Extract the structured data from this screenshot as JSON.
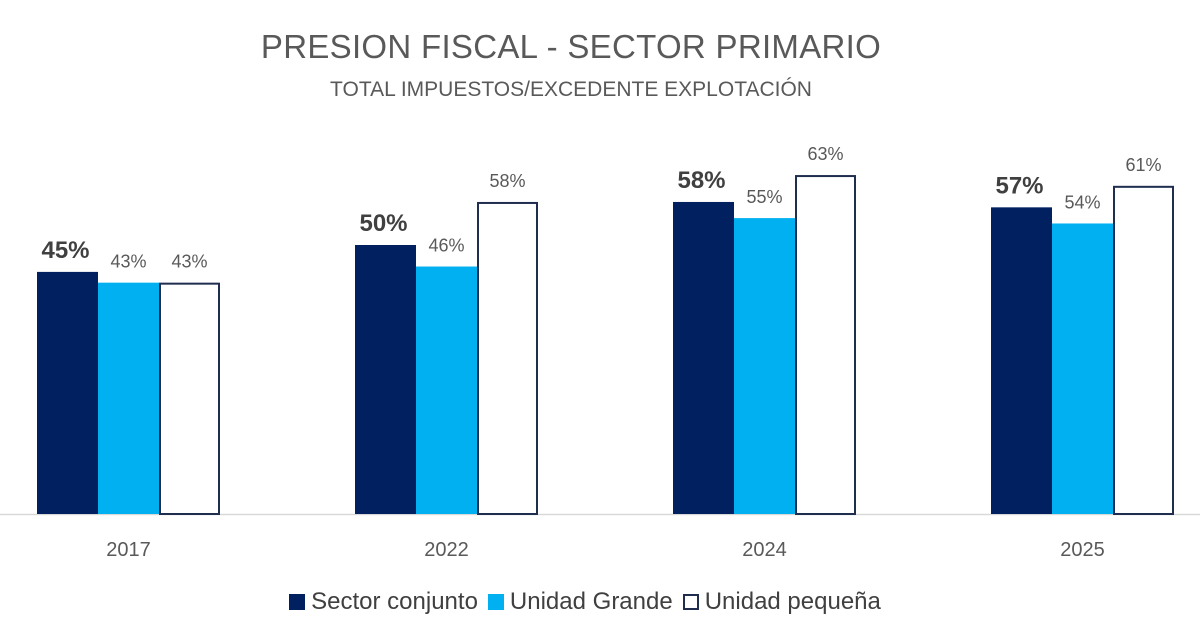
{
  "chart_data": {
    "type": "bar",
    "title": "PRESION FISCAL - SECTOR PRIMARIO",
    "subtitle": "TOTAL IMPUESTOS/EXCEDENTE EXPLOTACIÓN",
    "xlabel": "",
    "ylabel": "",
    "categories": [
      "2017",
      "2022",
      "2024",
      "2025"
    ],
    "series": [
      {
        "name": "Sector conjunto",
        "values": [
          45,
          50,
          58,
          57
        ],
        "labels": [
          "45%",
          "50%",
          "58%",
          "57%"
        ],
        "color": "#002060",
        "fill": "#002060",
        "label_bold": true
      },
      {
        "name": "Unidad Grande",
        "values": [
          43,
          46,
          55,
          54
        ],
        "labels": [
          "43%",
          "46%",
          "55%",
          "54%"
        ],
        "color": "#00B0F0",
        "fill": "#00B0F0",
        "label_bold": false
      },
      {
        "name": "Unidad pequeña",
        "values": [
          43,
          58,
          63,
          61
        ],
        "labels": [
          "43%",
          "58%",
          "63%",
          "61%"
        ],
        "color": "#1F2D4F",
        "fill": "#FFFFFF",
        "label_bold": false
      }
    ],
    "ylim": [
      0,
      70
    ],
    "grid": false,
    "y_axis_visible": false,
    "legend_position": "bottom"
  }
}
